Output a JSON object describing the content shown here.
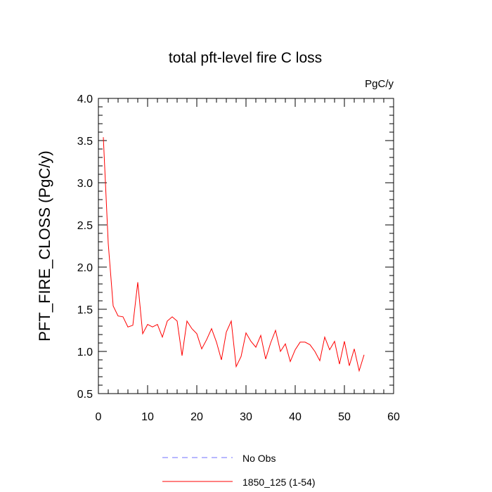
{
  "chart_data": {
    "type": "line",
    "title": "total pft-level fire C loss",
    "units_label": "PgC/y",
    "xlabel": "",
    "ylabel": "PFT_FIRE_CLOSS  (PgC/y)",
    "xlim": [
      0,
      60
    ],
    "ylim": [
      0.5,
      4.0
    ],
    "x_ticks": [
      0,
      10,
      20,
      30,
      40,
      50,
      60
    ],
    "y_ticks": [
      0.5,
      1.0,
      1.5,
      2.0,
      2.5,
      3.0,
      3.5,
      4.0
    ],
    "x_tick_labels": [
      "0",
      "10",
      "20",
      "30",
      "40",
      "50",
      "60"
    ],
    "y_tick_labels": [
      "0.5",
      "1.0",
      "1.5",
      "2.0",
      "2.5",
      "3.0",
      "3.5",
      "4.0"
    ],
    "grid": false,
    "legend_position": "bottom",
    "series": [
      {
        "name": "No Obs",
        "color": "#6f6fff",
        "dash": true,
        "x": [],
        "values": []
      },
      {
        "name": "1850_125 (1-54)",
        "color": "#ff0000",
        "dash": false,
        "x": [
          1,
          2,
          3,
          4,
          5,
          6,
          7,
          8,
          9,
          10,
          11,
          12,
          13,
          14,
          15,
          16,
          17,
          18,
          19,
          20,
          21,
          22,
          23,
          24,
          25,
          26,
          27,
          28,
          29,
          30,
          31,
          32,
          33,
          34,
          35,
          36,
          37,
          38,
          39,
          40,
          41,
          42,
          43,
          44,
          45,
          46,
          47,
          48,
          49,
          50,
          51,
          52,
          53,
          54
        ],
        "values": [
          3.54,
          2.28,
          1.54,
          1.42,
          1.41,
          1.29,
          1.31,
          1.82,
          1.21,
          1.32,
          1.29,
          1.32,
          1.17,
          1.36,
          1.41,
          1.36,
          0.95,
          1.36,
          1.27,
          1.21,
          1.03,
          1.14,
          1.27,
          1.11,
          0.9,
          1.23,
          1.36,
          0.82,
          0.94,
          1.22,
          1.12,
          1.05,
          1.19,
          0.91,
          1.1,
          1.25,
          1.0,
          1.09,
          0.88,
          1.02,
          1.11,
          1.11,
          1.08,
          1.0,
          0.89,
          1.17,
          1.02,
          1.12,
          0.85,
          1.12,
          0.83,
          1.03,
          0.77,
          0.96
        ]
      }
    ]
  }
}
